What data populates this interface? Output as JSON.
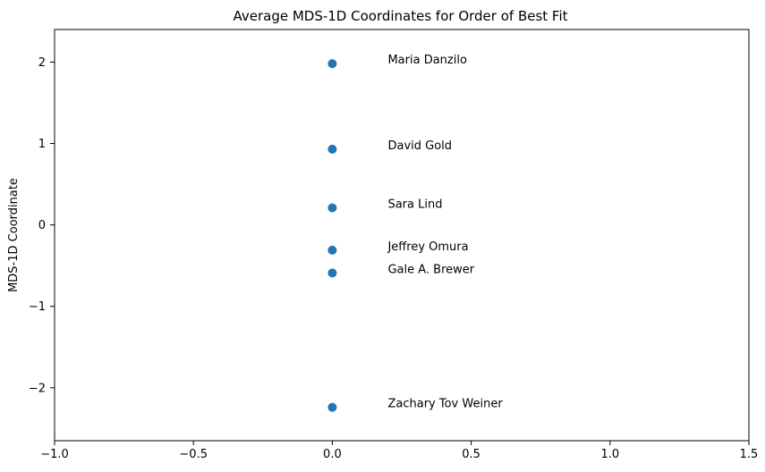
{
  "chart_data": {
    "type": "scatter",
    "title": "Average MDS-1D Coordinates for Order of Best Fit",
    "xlabel": "",
    "ylabel": "MDS-1D Coordinate",
    "xlim": [
      -1.0,
      1.5
    ],
    "ylim": [
      -2.65,
      2.4
    ],
    "x_ticks": [
      -1.0,
      -0.5,
      0.0,
      0.5,
      1.0,
      1.5
    ],
    "x_tick_labels": [
      "−1.0",
      "−0.5",
      "0.0",
      "0.5",
      "1.0",
      "1.5"
    ],
    "y_ticks": [
      -2,
      -1,
      0,
      1,
      2
    ],
    "y_tick_labels": [
      "−2",
      "−1",
      "0",
      "1",
      "2"
    ],
    "grid": false,
    "marker_color": "#1f77b4",
    "points": [
      {
        "label": "Maria Danzilo",
        "x": 0.0,
        "y": 1.98
      },
      {
        "label": "David Gold",
        "x": 0.0,
        "y": 0.93
      },
      {
        "label": "Sara Lind",
        "x": 0.0,
        "y": 0.21
      },
      {
        "label": "Jeffrey Omura",
        "x": 0.0,
        "y": -0.31
      },
      {
        "label": "Gale A. Brewer",
        "x": 0.0,
        "y": -0.59
      },
      {
        "label": "Zachary Tov Weiner",
        "x": 0.0,
        "y": -2.24
      }
    ],
    "annotations": [
      {
        "text": "Maria Danzilo",
        "x": 0.2,
        "y": 2.03
      },
      {
        "text": "David Gold",
        "x": 0.2,
        "y": 0.98
      },
      {
        "text": "Sara Lind",
        "x": 0.2,
        "y": 0.26
      },
      {
        "text": "Jeffrey Omura",
        "x": 0.2,
        "y": -0.26
      },
      {
        "text": "Gale A. Brewer",
        "x": 0.2,
        "y": -0.54
      },
      {
        "text": "Zachary Tov Weiner",
        "x": 0.2,
        "y": -2.19
      }
    ]
  }
}
